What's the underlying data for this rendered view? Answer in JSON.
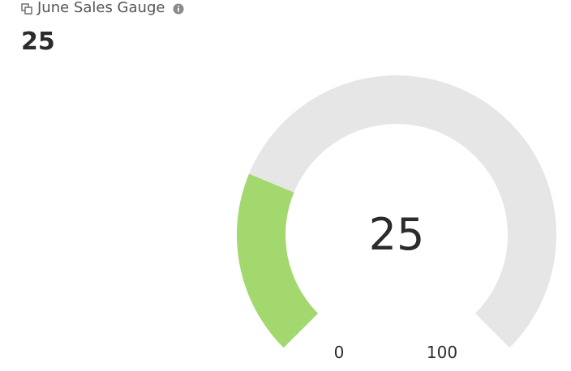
{
  "header": {
    "title": "June Sales Gauge",
    "title_icon": "copy-icon",
    "info_icon": "info-icon"
  },
  "summary": {
    "value": "25"
  },
  "colors": {
    "fill": "#a3d86f",
    "track": "#e6e6e6",
    "text": "#2b2b2b"
  },
  "chart_data": {
    "type": "gauge",
    "value": 25,
    "min": 0,
    "max": 100,
    "center_label": "25",
    "min_label": "0",
    "max_label": "100"
  }
}
